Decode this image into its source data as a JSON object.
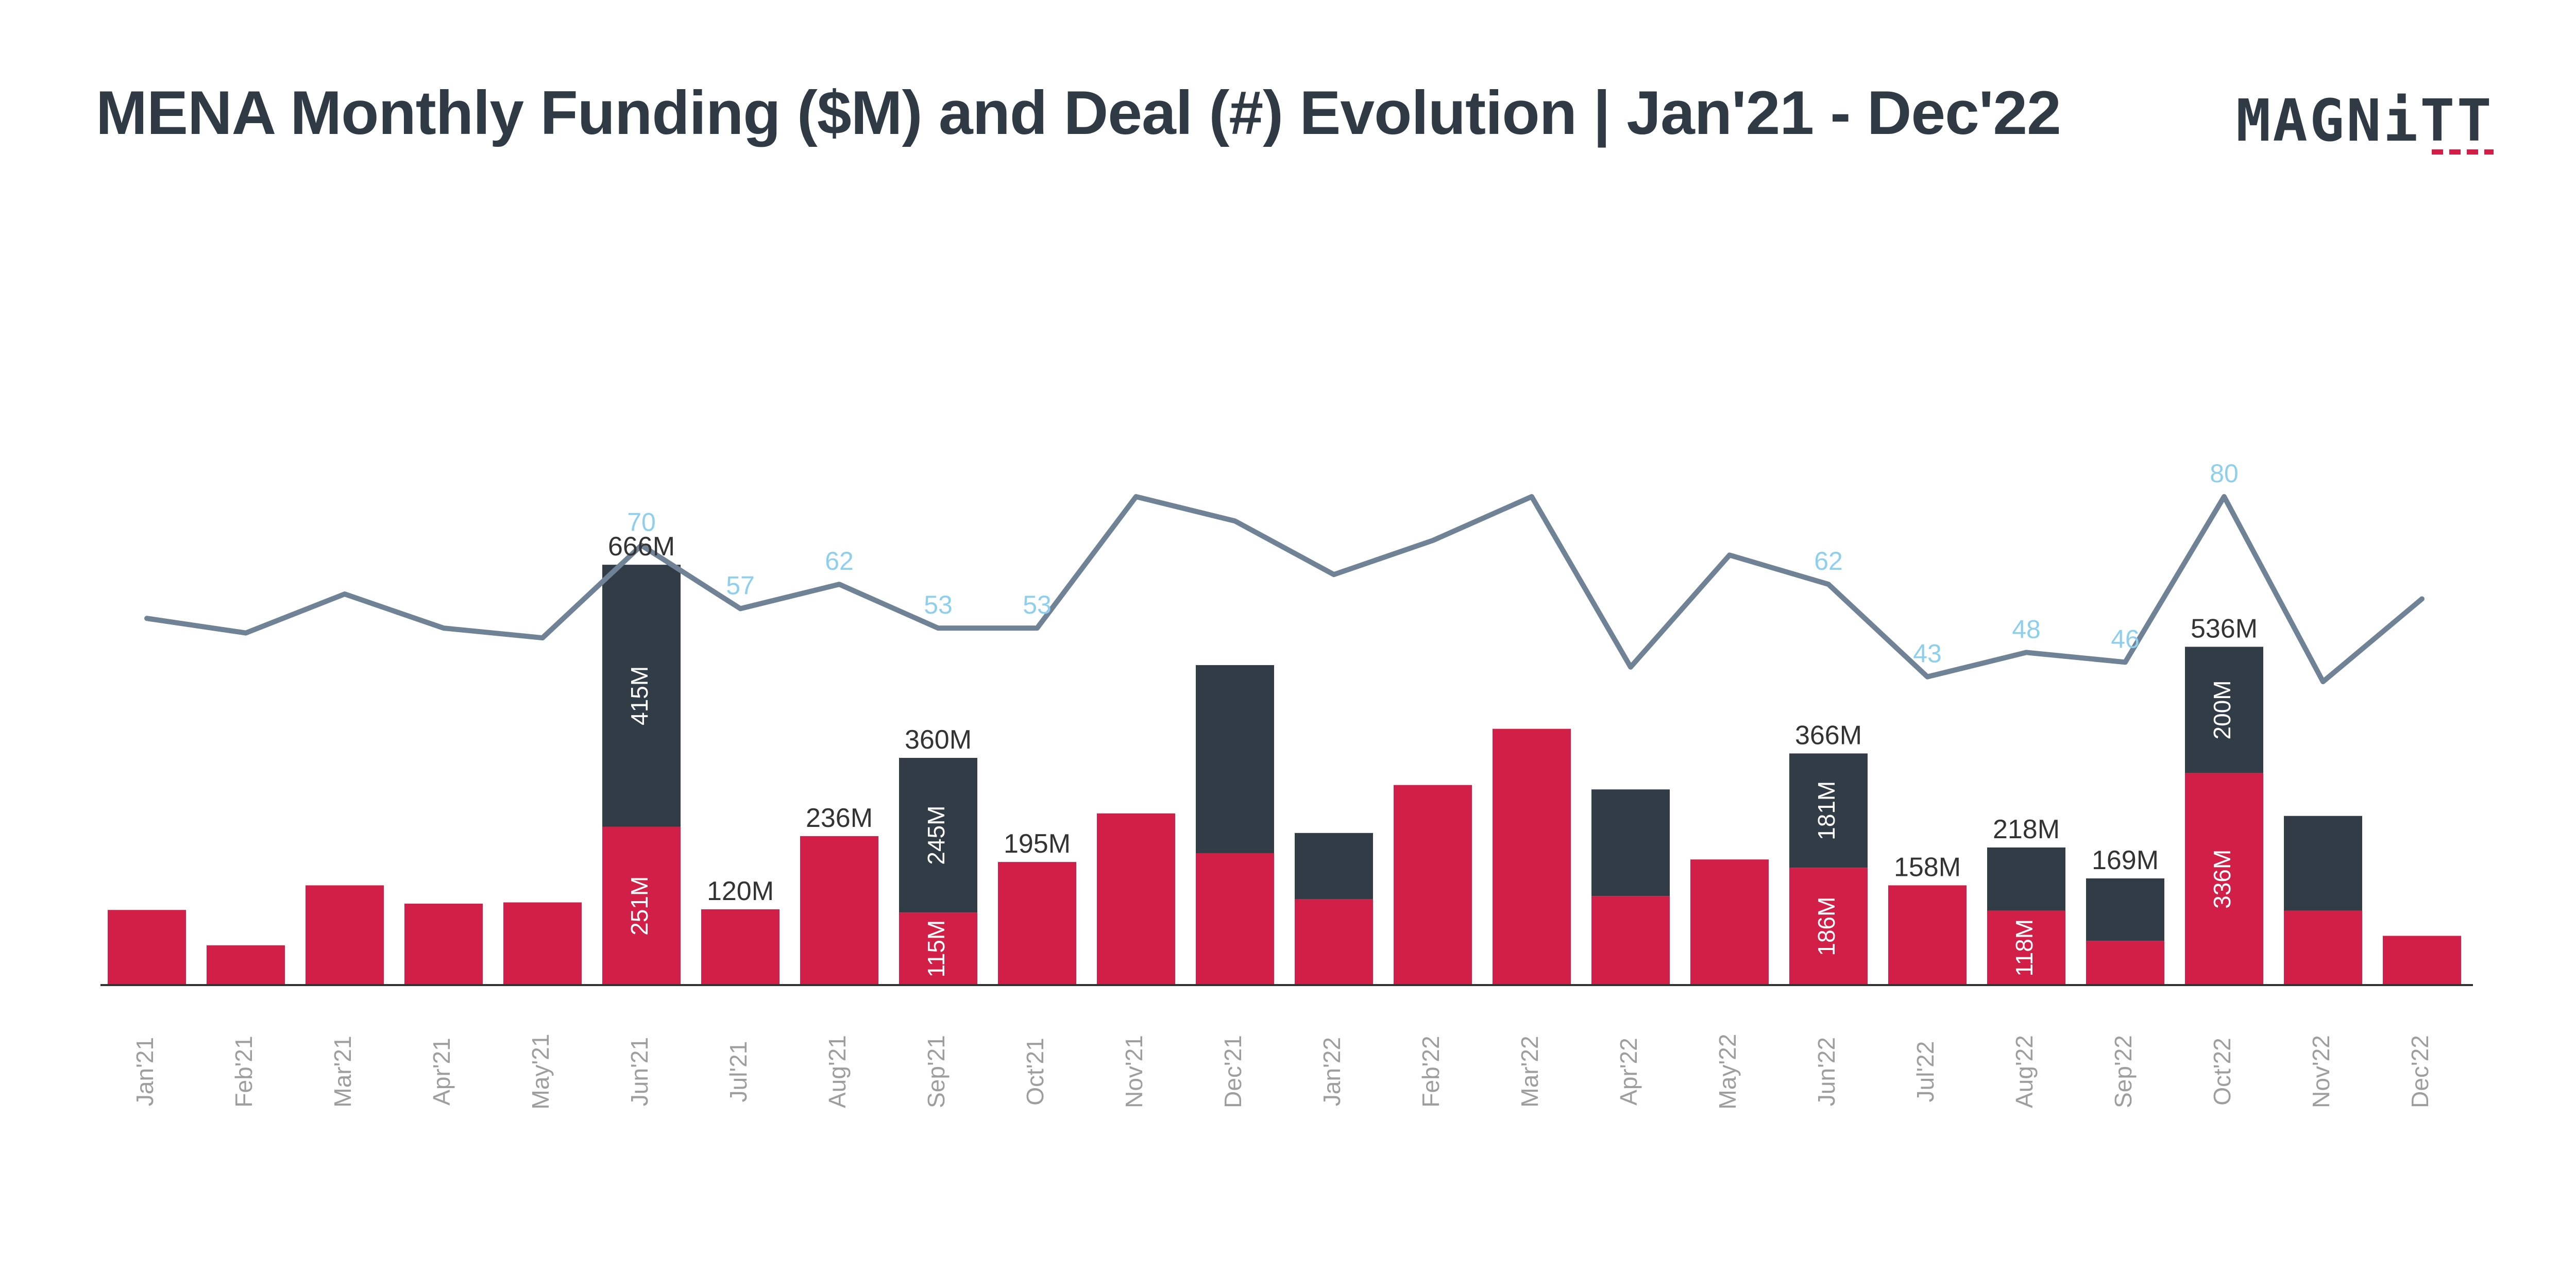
{
  "header": {
    "title": "MENA Monthly Funding ($M) and Deal (#) Evolution | Jan'21 - Dec'22",
    "logo_text": "MAGNiTT"
  },
  "colors": {
    "funding_bar": "#d21f47",
    "mega_deal_bar": "#323c47",
    "deal_line": "#6f8296",
    "deal_label": "#8ecfee",
    "axis": "#333333",
    "tick": "#9e9e9e",
    "title": "#2f3a45"
  },
  "chart_data": {
    "type": "bar",
    "title": "MENA Monthly Funding ($M) and Deal (#) Evolution | Jan'21 - Dec'22",
    "categories": [
      "Jan'21",
      "Feb'21",
      "Mar'21",
      "Apr'21",
      "May'21",
      "Jun'21",
      "Jul'21",
      "Aug'21",
      "Sep'21",
      "Oct'21",
      "Nov'21",
      "Dec'21",
      "Jan'22",
      "Feb'22",
      "Mar'22",
      "Apr'22",
      "May'22",
      "Jun'22",
      "Jul'22",
      "Aug'22",
      "Sep'22",
      "Oct'22",
      "Nov'22",
      "Dec'22"
    ],
    "series": [
      {
        "kind": "bar",
        "values": [
          119,
          63,
          158,
          129,
          131,
          251,
          120,
          236,
          115,
          195,
          272,
          209,
          136,
          317,
          406,
          141,
          199,
          186,
          158,
          118,
          70,
          336,
          118,
          78
        ]
      },
      {
        "kind": "bar",
        "values": [
          0,
          0,
          0,
          0,
          0,
          415,
          0,
          0,
          245,
          0,
          0,
          298,
          105,
          0,
          0,
          169,
          0,
          181,
          0,
          100,
          99,
          200,
          150,
          0
        ]
      },
      {
        "kind": "line",
        "values": [
          55,
          52,
          60,
          53,
          51,
          70,
          57,
          62,
          53,
          53,
          80,
          75,
          64,
          71,
          80,
          45,
          68,
          62,
          43,
          48,
          46,
          80,
          42,
          59
        ]
      }
    ],
    "total_labels": [
      "",
      "",
      "",
      "",
      "",
      "666M",
      "120M",
      "236M",
      "360M",
      "195M",
      "",
      "",
      "",
      "",
      "",
      "",
      "",
      "366M",
      "158M",
      "218M",
      "169M",
      "536M",
      "",
      ""
    ],
    "segment_labels_bottom": [
      "",
      "",
      "",
      "",
      "",
      "251M",
      "",
      "",
      "115M",
      "",
      "",
      "",
      "",
      "",
      "",
      "",
      "",
      "186M",
      "",
      "118M",
      "",
      "336M",
      "",
      ""
    ],
    "segment_labels_top": [
      "",
      "",
      "",
      "",
      "",
      "415M",
      "",
      "",
      "245M",
      "",
      "",
      "",
      "",
      "",
      "",
      "",
      "",
      "181M",
      "",
      "",
      "",
      "200M",
      "",
      ""
    ],
    "line_labels": [
      "",
      "",
      "",
      "",
      "",
      "70",
      "57",
      "62",
      "53",
      "53",
      "",
      "",
      "",
      "",
      "",
      "",
      "",
      "62",
      "43",
      "48",
      "46",
      "80",
      "",
      ""
    ],
    "bar_ylim": [
      0,
      1000
    ],
    "line_ylim": [
      0,
      140
    ],
    "grid": false,
    "legend": "none"
  }
}
